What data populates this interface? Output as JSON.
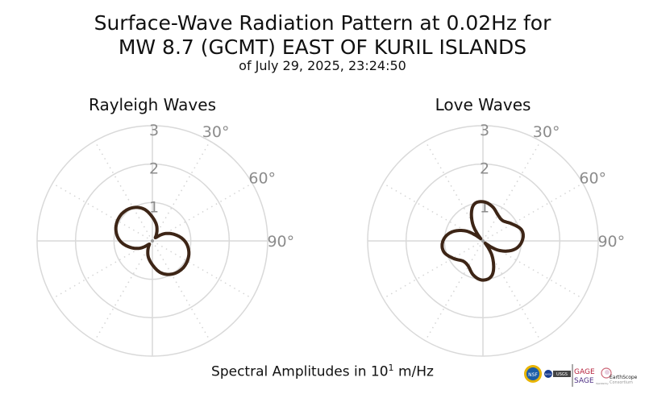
{
  "header": {
    "title_line1": "Surface-Wave Radiation Pattern at 0.02Hz for",
    "title_line2": "MW 8.7 (GCMT) EAST OF KURIL ISLANDS",
    "subtitle": "of July 29, 2025, 23:24:50"
  },
  "footer": {
    "label_prefix": "Spectral Amplitudes in 10",
    "exponent": "1",
    "label_suffix": " m/Hz"
  },
  "logos": {
    "nsf": "NSF",
    "nasa": "NASA",
    "usgs": "USGS",
    "gage": "GAGE",
    "sage": "SAGE",
    "operated_by": "Operated by",
    "earthscope": "EarthScope",
    "consortium": "Consortium"
  },
  "colors": {
    "curve": "#3d2516",
    "grid": "#d9d9d9",
    "tick_label": "#8c8c8c"
  },
  "chart_data": [
    {
      "type": "polar-line",
      "title": "Rayleigh Waves",
      "theta_zero": "north",
      "direction": "clockwise",
      "r_range": [
        0,
        3
      ],
      "r_ticks": [
        "1",
        "2",
        "3"
      ],
      "theta_tick_labels": [
        "30°",
        "60°",
        "90°"
      ],
      "azimuth_deg": [
        0,
        15,
        30,
        45,
        60,
        75,
        90,
        105,
        120,
        135,
        150,
        165,
        180,
        195,
        210,
        225,
        240,
        255,
        270,
        285,
        300,
        315,
        330,
        345
      ],
      "amplitude": [
        0.62,
        0.42,
        0.22,
        0.12,
        0.38,
        0.62,
        0.84,
        0.98,
        1.05,
        1.06,
        1.0,
        0.86,
        0.62,
        0.42,
        0.22,
        0.12,
        0.38,
        0.62,
        0.84,
        0.98,
        1.05,
        1.06,
        1.0,
        0.86
      ]
    },
    {
      "type": "polar-line",
      "title": "Love Waves",
      "theta_zero": "north",
      "direction": "clockwise",
      "r_range": [
        0,
        3
      ],
      "r_ticks": [
        "1",
        "2",
        "3"
      ],
      "theta_tick_labels": [
        "30°",
        "60°",
        "90°"
      ],
      "azimuth_deg": [
        0,
        15,
        30,
        45,
        60,
        75,
        90,
        105,
        120,
        135,
        150,
        165,
        180,
        195,
        210,
        225,
        240,
        255,
        270,
        285,
        300,
        315,
        330,
        345
      ],
      "amplitude": [
        1.02,
        0.93,
        0.78,
        0.74,
        0.88,
        1.05,
        1.02,
        0.85,
        0.5,
        0.08,
        0.5,
        0.92,
        1.02,
        0.93,
        0.76,
        0.74,
        0.9,
        1.06,
        1.04,
        0.86,
        0.52,
        0.08,
        0.55,
        0.96
      ]
    }
  ]
}
